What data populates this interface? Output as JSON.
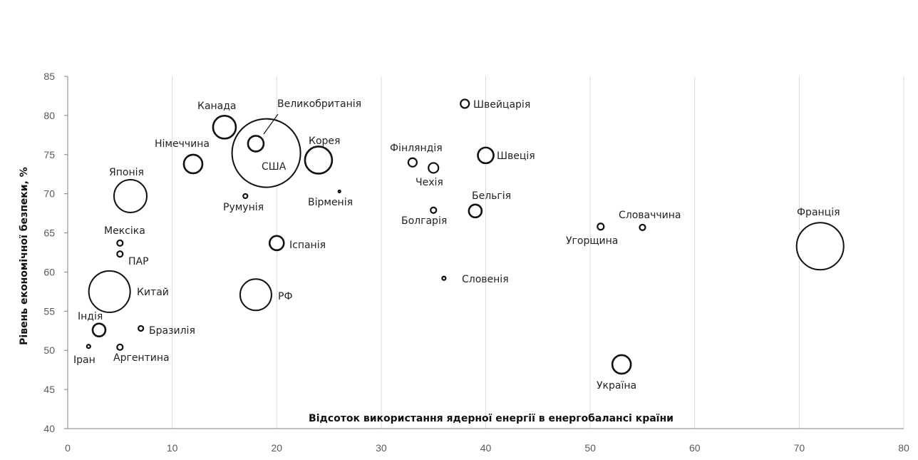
{
  "chart_data": {
    "type": "scatter",
    "subtype": "bubble",
    "title": "",
    "xlabel": "Відсоток використання ядерної енергії в енергобалансі країни",
    "ylabel": "Рівень економічної безпеки, %",
    "xlim": [
      0,
      80
    ],
    "ylim": [
      40,
      85
    ],
    "x_ticks": [
      "0",
      "10",
      "20",
      "30",
      "40",
      "50",
      "60",
      "70",
      "80"
    ],
    "y_ticks": [
      "40",
      "45",
      "50",
      "55",
      "60",
      "65",
      "70",
      "75",
      "80",
      "85"
    ],
    "grid": "vertical",
    "legend": "none",
    "marker_fill": "#ffffff",
    "marker_stroke": "#111111",
    "tick_color": "#595959",
    "grid_color": "#d9d9d9",
    "points": [
      {
        "label": "США",
        "x": 19,
        "y": 75.2,
        "size": 48
      },
      {
        "label": "Великобританія",
        "x": 18,
        "y": 76.4,
        "size": 11
      },
      {
        "label": "Канада",
        "x": 15,
        "y": 78.5,
        "size": 16
      },
      {
        "label": "Німеччина",
        "x": 12,
        "y": 73.8,
        "size": 13
      },
      {
        "label": "Корея",
        "x": 24,
        "y": 74.3,
        "size": 19
      },
      {
        "label": "Японія",
        "x": 6,
        "y": 69.7,
        "size": 23
      },
      {
        "label": "Румунія",
        "x": 17,
        "y": 69.7,
        "size": 3
      },
      {
        "label": "Вірменія",
        "x": 26,
        "y": 70.3,
        "size": 1.5
      },
      {
        "label": "Фінляндія",
        "x": 33,
        "y": 74,
        "size": 6
      },
      {
        "label": "Чехія",
        "x": 35,
        "y": 73.3,
        "size": 7
      },
      {
        "label": "Швейцарія",
        "x": 38,
        "y": 81.5,
        "size": 6
      },
      {
        "label": "Швеція",
        "x": 40,
        "y": 74.9,
        "size": 11
      },
      {
        "label": "Бельгія",
        "x": 39,
        "y": 67.8,
        "size": 9
      },
      {
        "label": "Болгарія",
        "x": 35,
        "y": 67.9,
        "size": 4
      },
      {
        "label": "Мексіка",
        "x": 5,
        "y": 63.7,
        "size": 4
      },
      {
        "label": "ПАР",
        "x": 5,
        "y": 62.3,
        "size": 4
      },
      {
        "label": "Іспанія",
        "x": 20,
        "y": 63.7,
        "size": 10
      },
      {
        "label": "Словенія",
        "x": 36,
        "y": 59.2,
        "size": 2.5
      },
      {
        "label": "Угорщина",
        "x": 51,
        "y": 65.8,
        "size": 4.5
      },
      {
        "label": "Словаччина",
        "x": 55,
        "y": 65.7,
        "size": 4
      },
      {
        "label": "Франція",
        "x": 72,
        "y": 63.3,
        "size": 33
      },
      {
        "label": "Китай",
        "x": 4,
        "y": 57.5,
        "size": 29
      },
      {
        "label": "РФ",
        "x": 18,
        "y": 57.1,
        "size": 22
      },
      {
        "label": "Індія",
        "x": 3,
        "y": 52.6,
        "size": 9
      },
      {
        "label": "Бразилія",
        "x": 7,
        "y": 52.8,
        "size": 3.5
      },
      {
        "label": "Іран",
        "x": 2,
        "y": 50.5,
        "size": 2.5
      },
      {
        "label": "Аргентина",
        "x": 5,
        "y": 50.4,
        "size": 4
      },
      {
        "label": "Україна",
        "x": 53,
        "y": 48.2,
        "size": 13
      }
    ]
  }
}
